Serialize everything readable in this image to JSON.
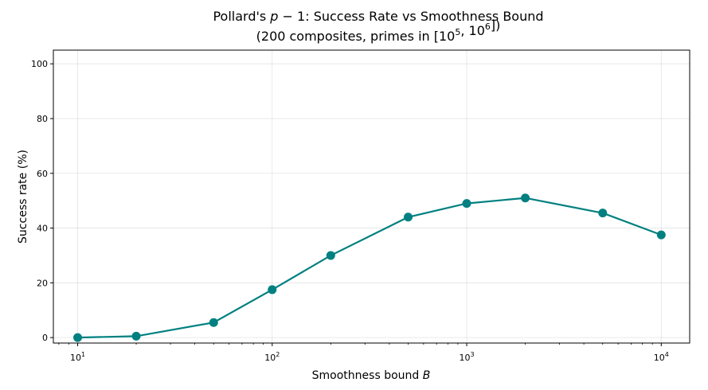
{
  "chart_data": {
    "type": "line",
    "title_line1": "Pollard's p − 1: Success Rate vs Smoothness Bound",
    "title_line2": "(200 composites, primes in [10^5, 10^6])",
    "xlabel": "Smoothness bound B",
    "ylabel": "Success rate (%)",
    "x_scale": "log",
    "xlim": [
      7.5,
      14000
    ],
    "ylim": [
      -2,
      105
    ],
    "x_ticks": [
      {
        "value": 10,
        "label": "10^1"
      },
      {
        "value": 100,
        "label": "10^2"
      },
      {
        "value": 1000,
        "label": "10^3"
      },
      {
        "value": 10000,
        "label": "10^4"
      }
    ],
    "y_ticks": [
      0,
      20,
      40,
      60,
      80,
      100
    ],
    "grid": true,
    "series": [
      {
        "color": "#008080",
        "x": [
          10,
          20,
          50,
          100,
          200,
          500,
          1000,
          2000,
          5000,
          10000
        ],
        "y": [
          0,
          0.5,
          5.5,
          17.5,
          30,
          44,
          49,
          51,
          45.5,
          37.5
        ]
      }
    ]
  }
}
